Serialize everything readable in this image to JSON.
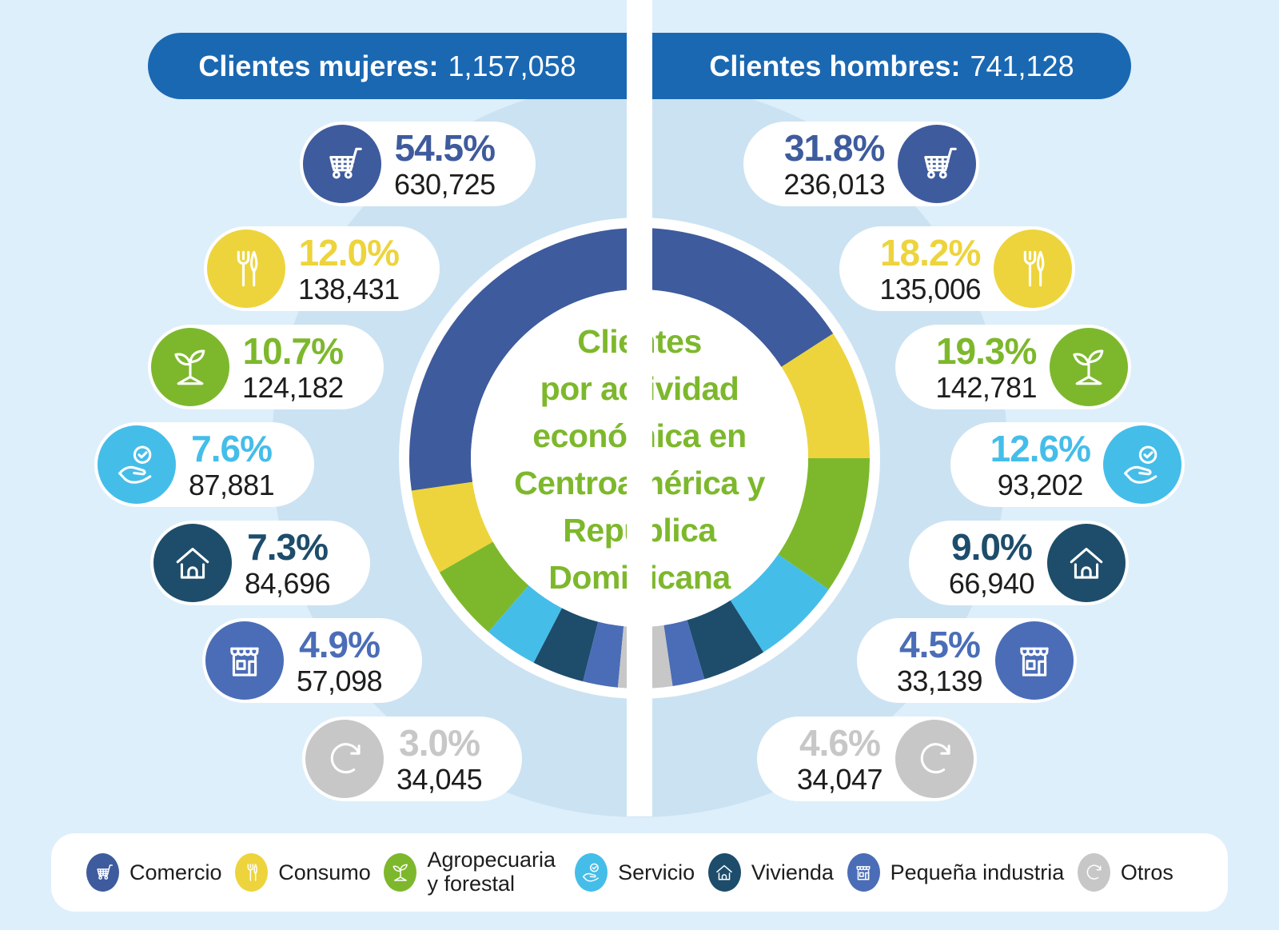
{
  "page": {
    "background": "#ddeffa",
    "backdrop_circle": "#cbe2f2",
    "header_bg": "#1a68b2",
    "title_color": "#7db82c"
  },
  "header": {
    "women": {
      "label": "Clientes mujeres:",
      "value": "1,157,058"
    },
    "men": {
      "label": "Clientes hombres:",
      "value": "741,128"
    }
  },
  "center": {
    "title_lines": [
      "Clientes",
      "por actividad",
      "económica en",
      "Centroamérica y",
      "República",
      "Dominicana"
    ]
  },
  "categories": [
    {
      "id": "comercio",
      "label": "Comercio",
      "icon": "cart-icon",
      "color": "#3e5b9d"
    },
    {
      "id": "consumo",
      "label": "Consumo",
      "icon": "cutlery-icon",
      "color": "#edd43c"
    },
    {
      "id": "agro",
      "label": "Agropecuaria y forestal",
      "icon": "plant-icon",
      "color": "#7db82c"
    },
    {
      "id": "servicio",
      "label": "Servicio",
      "icon": "hand-check-icon",
      "color": "#45bde9"
    },
    {
      "id": "vivienda",
      "label": "Vivienda",
      "icon": "house-icon",
      "color": "#1d4d6b"
    },
    {
      "id": "pequena",
      "label": "Pequeña industria",
      "icon": "store-icon",
      "color": "#4b6db7"
    },
    {
      "id": "otros",
      "label": "Otros",
      "icon": "refresh-icon",
      "color": "#c7c7c7"
    }
  ],
  "chart_data": {
    "type": "pie",
    "variant": "split-donut",
    "title": "Clientes por actividad económica en Centroamérica y República Dominicana",
    "legend_position": "bottom",
    "categories": [
      "Comercio",
      "Consumo",
      "Agropecuaria y forestal",
      "Servicio",
      "Vivienda",
      "Pequeña industria",
      "Otros"
    ],
    "colors": [
      "#3e5b9d",
      "#edd43c",
      "#7db82c",
      "#45bde9",
      "#1d4d6b",
      "#4b6db7",
      "#c7c7c7"
    ],
    "series": [
      {
        "name": "Clientes mujeres",
        "side": "left",
        "total": "1,157,058",
        "percents": [
          54.5,
          12.0,
          10.7,
          7.6,
          7.3,
          4.9,
          3.0
        ],
        "percent_labels": [
          "54.5%",
          "12.0%",
          "10.7%",
          "7.6%",
          "7.3%",
          "4.9%",
          "3.0%"
        ],
        "counts": [
          "630,725",
          "138,431",
          "124,182",
          "87,881",
          "84,696",
          "57,098",
          "34,045"
        ]
      },
      {
        "name": "Clientes hombres",
        "side": "right",
        "total": "741,128",
        "percents": [
          31.8,
          18.2,
          19.3,
          12.6,
          9.0,
          4.5,
          4.6
        ],
        "percent_labels": [
          "31.8%",
          "18.2%",
          "19.3%",
          "12.6%",
          "9.0%",
          "4.5%",
          "4.6%"
        ],
        "counts": [
          "236,013",
          "135,006",
          "142,781",
          "93,202",
          "66,940",
          "33,139",
          "34,047"
        ]
      }
    ]
  }
}
